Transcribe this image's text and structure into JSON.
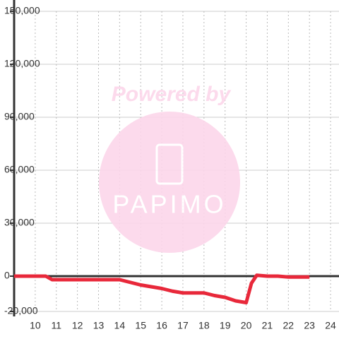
{
  "chart_data": {
    "type": "line",
    "watermark": {
      "title": "Powered by",
      "logo_text": "PAPIMO"
    },
    "x": [
      9,
      10.5,
      10.8,
      14.0,
      15.0,
      15.5,
      16.0,
      16.5,
      17.0,
      18.0,
      18.5,
      19.0,
      19.5,
      20.0,
      20.25,
      20.5,
      21.0,
      21.5,
      22.0,
      23.0
    ],
    "series": [
      {
        "color": "#e8283a",
        "values": [
          0,
          0,
          -2000,
          -2000,
          -5000,
          -6000,
          -7000,
          -8500,
          -9500,
          -9500,
          -11000,
          -12000,
          -14000,
          -15000,
          -4000,
          500,
          0,
          0,
          -500,
          -500
        ]
      }
    ],
    "xlim": [
      9,
      24.4
    ],
    "xticks": [
      10,
      11,
      12,
      13,
      14,
      15,
      16,
      17,
      18,
      19,
      20,
      21,
      22,
      23,
      24
    ],
    "ylim": [
      -20000,
      150000
    ],
    "yticks": [
      {
        "value": -20000,
        "label": "-20,000"
      },
      0,
      {
        "value": 30000,
        "label": "30,000"
      },
      {
        "value": 60000,
        "label": "60,000"
      },
      {
        "value": 90000,
        "label": "90,000"
      },
      {
        "value": 120000,
        "label": "120,000"
      },
      {
        "value": 150000,
        "label": "150,000"
      }
    ],
    "grid": true
  }
}
